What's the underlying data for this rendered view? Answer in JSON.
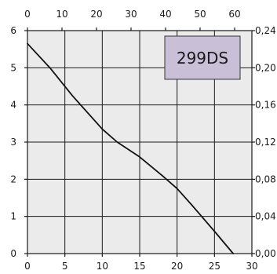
{
  "chart_data": {
    "type": "line",
    "title": "",
    "xlabel": "",
    "ylabel": "",
    "grid": true,
    "legend_position": "top-right",
    "colors": {
      "background": "#ebebeb",
      "grid": "#1a1a1a",
      "line": "#111111",
      "legend_fill": "#c9bfd6"
    },
    "axes": {
      "x_bottom": {
        "range": [
          0,
          30
        ],
        "ticks": [
          "0",
          "5",
          "10",
          "15",
          "20",
          "25",
          "30"
        ]
      },
      "x_top": {
        "range": [
          0,
          65
        ],
        "ticks": [
          "0",
          "10",
          "20",
          "30",
          "40",
          "50",
          "60"
        ]
      },
      "y_left": {
        "range": [
          0,
          6
        ],
        "ticks": [
          "0",
          "1",
          "2",
          "3",
          "4",
          "5",
          "6"
        ]
      },
      "y_right": {
        "range": [
          0,
          0.24
        ],
        "ticks": [
          "0,00",
          "0,04",
          "0,08",
          "0,12",
          "0,16",
          "0,20",
          "0,24"
        ]
      }
    },
    "series": [
      {
        "name": "299DS",
        "x": [
          0,
          3,
          6,
          10,
          12,
          15,
          18,
          20,
          22,
          25,
          27.5
        ],
        "y": [
          5.65,
          5.0,
          4.25,
          3.35,
          3.0,
          2.6,
          2.1,
          1.75,
          1.3,
          0.6,
          0.0
        ]
      }
    ]
  }
}
